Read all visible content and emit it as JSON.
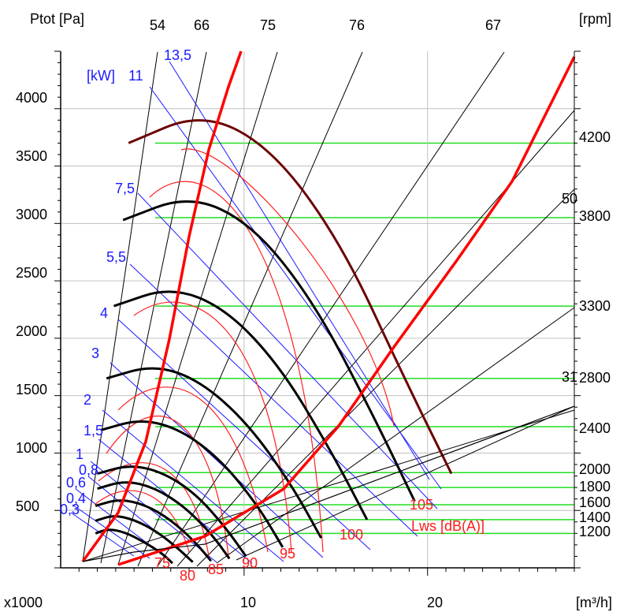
{
  "chart_data": {
    "type": "line",
    "title": "",
    "ylabel": "Ptot [Pa]",
    "xlabel": "[m³/h]",
    "x_multiplier_label": "x1000",
    "rpm_axis_label": "[rpm]",
    "power_unit_label": "[kW]",
    "noise_unit_label": "Lws [dB(A)]",
    "xlim": [
      0,
      28
    ],
    "ylim": [
      0,
      4500
    ],
    "y_ticks": [
      500,
      1000,
      1500,
      2000,
      2500,
      3000,
      3500,
      4000
    ],
    "x_ticks": [
      10,
      20
    ],
    "grid": true,
    "rpm_lines": [
      {
        "rpm": 1200,
        "p": 300
      },
      {
        "rpm": 1400,
        "p": 420
      },
      {
        "rpm": 1600,
        "p": 550
      },
      {
        "rpm": 1800,
        "p": 700
      },
      {
        "rpm": 2000,
        "p": 830
      },
      {
        "rpm": 2400,
        "p": 1230
      },
      {
        "rpm": 2800,
        "p": 1650
      },
      {
        "rpm": 3300,
        "p": 2280
      },
      {
        "rpm": 3800,
        "p": 3050
      },
      {
        "rpm": 4200,
        "p": 3700
      }
    ],
    "top_labels": [
      "54",
      "66",
      "75",
      "76",
      "67"
    ],
    "right_side_labels": [
      "50",
      "31"
    ],
    "fan_curves": [
      {
        "rpm": 1200,
        "dark": false,
        "points": [
          [
            1.9,
            300
          ],
          [
            2.6,
            340
          ],
          [
            3.5,
            310
          ],
          [
            4.5,
            230
          ],
          [
            5.5,
            130
          ],
          [
            6.1,
            40
          ]
        ]
      },
      {
        "rpm": 1400,
        "dark": false,
        "points": [
          [
            1.9,
            410
          ],
          [
            2.9,
            460
          ],
          [
            4.0,
            420
          ],
          [
            5.2,
            320
          ],
          [
            6.4,
            170
          ],
          [
            7.2,
            50
          ]
        ]
      },
      {
        "rpm": 1600,
        "dark": false,
        "points": [
          [
            1.9,
            540
          ],
          [
            3.2,
            600
          ],
          [
            4.6,
            550
          ],
          [
            6.0,
            420
          ],
          [
            7.3,
            230
          ],
          [
            8.2,
            60
          ]
        ]
      },
      {
        "rpm": 1800,
        "dark": false,
        "points": [
          [
            2.0,
            690
          ],
          [
            3.5,
            760
          ],
          [
            5.1,
            700
          ],
          [
            6.7,
            540
          ],
          [
            8.2,
            300
          ],
          [
            9.2,
            80
          ]
        ]
      },
      {
        "rpm": 2000,
        "dark": false,
        "points": [
          [
            2.0,
            820
          ],
          [
            3.8,
            900
          ],
          [
            5.6,
            830
          ],
          [
            7.4,
            640
          ],
          [
            9.0,
            350
          ],
          [
            10.1,
            100
          ]
        ]
      },
      {
        "rpm": 2400,
        "dark": false,
        "points": [
          [
            2.2,
            1200
          ],
          [
            4.4,
            1300
          ],
          [
            6.6,
            1200
          ],
          [
            8.8,
            930
          ],
          [
            10.8,
            530
          ],
          [
            12.1,
            180
          ]
        ]
      },
      {
        "rpm": 2800,
        "dark": false,
        "points": [
          [
            2.5,
            1650
          ],
          [
            5.1,
            1770
          ],
          [
            7.6,
            1630
          ],
          [
            10.2,
            1260
          ],
          [
            12.6,
            720
          ],
          [
            14.2,
            260
          ]
        ]
      },
      {
        "rpm": 3300,
        "dark": false,
        "points": [
          [
            2.9,
            2280
          ],
          [
            6.0,
            2450
          ],
          [
            9.0,
            2260
          ],
          [
            12.0,
            1750
          ],
          [
            14.8,
            1000
          ],
          [
            16.7,
            420
          ]
        ]
      },
      {
        "rpm": 3800,
        "dark": false,
        "points": [
          [
            3.4,
            3030
          ],
          [
            7.0,
            3250
          ],
          [
            10.4,
            3000
          ],
          [
            13.8,
            2320
          ],
          [
            17.0,
            1340
          ],
          [
            19.3,
            580
          ]
        ]
      },
      {
        "rpm": 4200,
        "dark": true,
        "points": [
          [
            3.7,
            3700
          ],
          [
            7.7,
            3970
          ],
          [
            11.5,
            3660
          ],
          [
            15.3,
            2830
          ],
          [
            18.8,
            1630
          ],
          [
            21.3,
            820
          ]
        ]
      }
    ],
    "power_labels": [
      "0,3",
      "0,4",
      "0,6",
      "0,8",
      "1",
      "1,5",
      "2",
      "3",
      "4",
      "5,5",
      "7,5",
      "11",
      "13,5"
    ],
    "noise_labels": [
      "75",
      "80",
      "85",
      "90",
      "95",
      "100",
      "105"
    ]
  }
}
